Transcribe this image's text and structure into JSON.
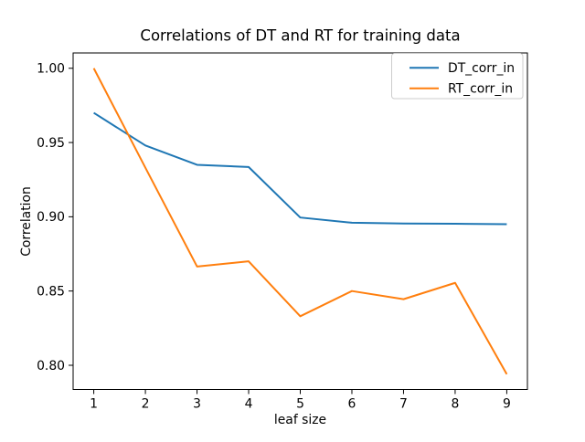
{
  "figure": {
    "background": "#ffffff",
    "spine_color": "#000000"
  },
  "chart_data": {
    "type": "line",
    "title": "Correlations of DT and RT for training data",
    "xlabel": "leaf size",
    "ylabel": "Correlation",
    "x": [
      1,
      2,
      3,
      4,
      5,
      6,
      7,
      8,
      9
    ],
    "xtick_labels": [
      "1",
      "2",
      "3",
      "4",
      "5",
      "6",
      "7",
      "8",
      "9"
    ],
    "yticks": [
      0.8,
      0.85,
      0.9,
      0.95,
      1.0
    ],
    "ytick_labels": [
      "0.80",
      "0.85",
      "0.90",
      "0.95",
      "1.00"
    ],
    "xlim": [
      0.6,
      9.4
    ],
    "ylim": [
      0.7837,
      1.0103
    ],
    "grid": false,
    "legend": {
      "position": "upper right",
      "entries": [
        "DT_corr_in",
        "RT_corr_in"
      ],
      "frame_color": "#cccccc",
      "frame_fill": "#ffffff"
    },
    "series": [
      {
        "name": "DT_corr_in",
        "color": "#1f77b4",
        "values": [
          0.97,
          0.948,
          0.935,
          0.9335,
          0.8995,
          0.896,
          0.8955,
          0.8953,
          0.895
        ]
      },
      {
        "name": "RT_corr_in",
        "color": "#ff7f0e",
        "values": [
          1.0,
          0.933,
          0.8665,
          0.87,
          0.833,
          0.85,
          0.8445,
          0.8555,
          0.794
        ]
      }
    ]
  }
}
